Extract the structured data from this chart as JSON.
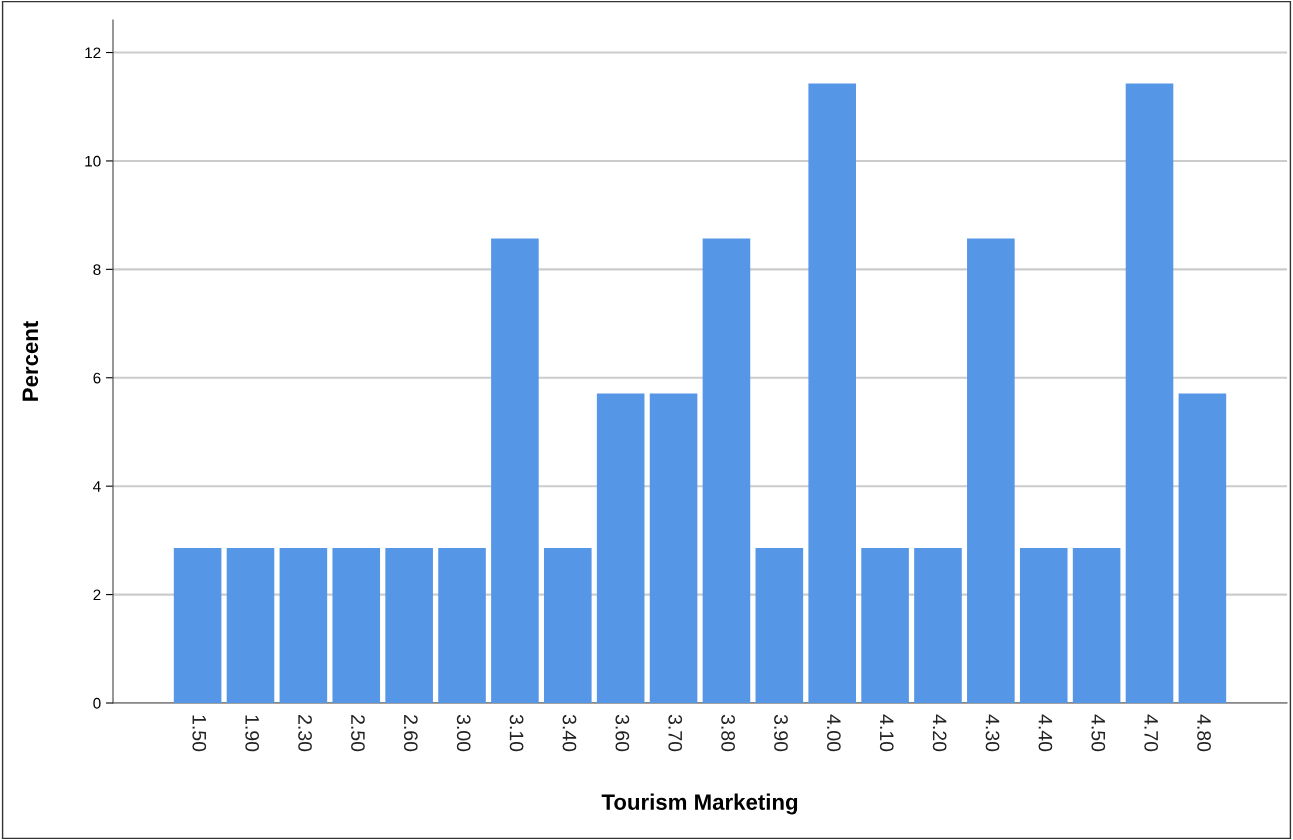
{
  "chart_data": {
    "type": "bar",
    "xlabel": "Tourism Marketing",
    "ylabel": "Percent",
    "categories": [
      "1.50",
      "1.90",
      "2.30",
      "2.50",
      "2.60",
      "3.00",
      "3.10",
      "3.40",
      "3.60",
      "3.70",
      "3.80",
      "3.90",
      "4.00",
      "4.10",
      "4.20",
      "4.30",
      "4.40",
      "4.50",
      "4.70",
      "4.80"
    ],
    "values": [
      2.86,
      2.86,
      2.86,
      2.86,
      2.86,
      2.86,
      8.57,
      2.86,
      5.71,
      5.71,
      8.57,
      2.86,
      11.43,
      2.86,
      2.86,
      8.57,
      2.86,
      2.86,
      11.43,
      5.71
    ],
    "color": "#5596e6",
    "ylim": [
      0,
      12.6
    ],
    "yticks": [
      0,
      2,
      4,
      6,
      8,
      10,
      12
    ],
    "grid": "y",
    "legend": false
  }
}
